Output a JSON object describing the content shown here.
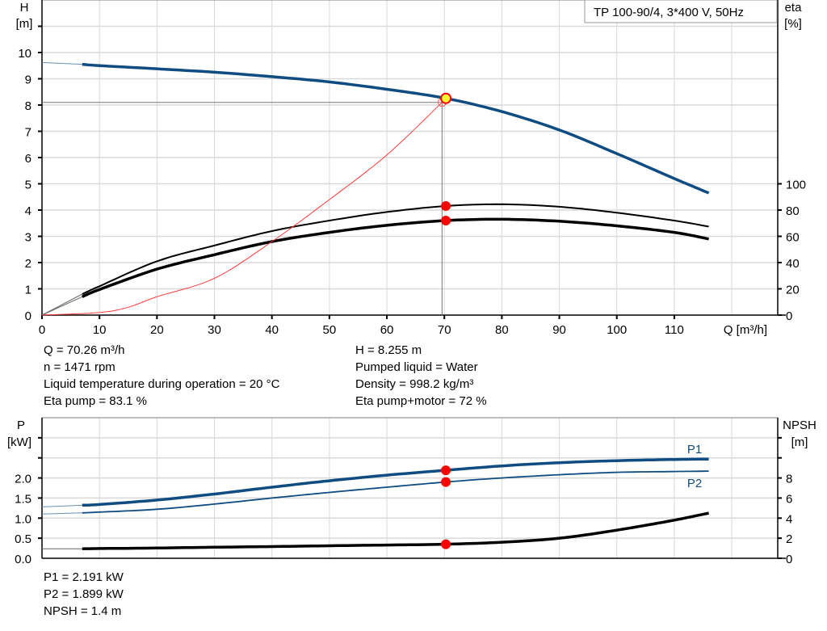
{
  "chart_data": [
    {
      "type": "line",
      "title": "TP 100-90/4, 3*400 V, 50Hz",
      "xlabel": "Q [m³/h]",
      "ylabel": "H\n[m]",
      "ylabel_parts": [
        "H",
        "[m]"
      ],
      "y2label_parts": [
        "eta",
        "[%]"
      ],
      "xlim": [
        0,
        128
      ],
      "ylim": [
        0,
        12
      ],
      "y2lim": [
        0,
        240
      ],
      "xticks": [
        0,
        10,
        20,
        30,
        40,
        50,
        60,
        70,
        80,
        90,
        100,
        110
      ],
      "yticks": [
        0,
        1,
        2,
        3,
        4,
        5,
        6,
        7,
        8,
        9,
        10
      ],
      "y2ticks": [
        0,
        20,
        40,
        60,
        80,
        100
      ],
      "grid": true,
      "series": [
        {
          "key": "H",
          "axis": "left",
          "color": "#0f4c81",
          "x": [
            7,
            10,
            20,
            30,
            40,
            50,
            60,
            70.26,
            80,
            90,
            100,
            110,
            116
          ],
          "y": [
            9.55,
            9.5,
            9.38,
            9.25,
            9.08,
            8.88,
            8.6,
            8.255,
            7.75,
            7.05,
            6.15,
            5.2,
            4.65
          ],
          "extrapolated": {
            "x": [
              0,
              7
            ],
            "y": [
              9.62,
              9.55
            ]
          }
        },
        {
          "key": "eta_pump",
          "axis": "right",
          "color": "#000000",
          "x": [
            7,
            10,
            20,
            30,
            40,
            50,
            60,
            70.26,
            80,
            90,
            100,
            110,
            116
          ],
          "y": [
            16,
            22,
            41,
            53,
            64,
            72,
            78.5,
            83.1,
            84.4,
            82.5,
            78,
            72,
            67.4
          ],
          "extrapolated": {
            "x": [
              0,
              7
            ],
            "y": [
              0,
              16
            ]
          }
        },
        {
          "key": "eta_pump_motor",
          "axis": "right",
          "color": "#000000",
          "x": [
            7,
            10,
            20,
            30,
            40,
            50,
            60,
            70.26,
            80,
            90,
            100,
            110,
            116
          ],
          "y": [
            14,
            19.5,
            35,
            46,
            56,
            63,
            68.4,
            72,
            73,
            71.5,
            68,
            63,
            58
          ],
          "extrapolated": {
            "x": [
              0,
              7
            ],
            "y": [
              0,
              14
            ]
          }
        },
        {
          "key": "system_curve",
          "axis": "left",
          "color": "#ff3b3b",
          "x": [
            0,
            10,
            15,
            20,
            30,
            40,
            50,
            60,
            69.6
          ],
          "y": [
            0,
            0.1,
            0.3,
            0.7,
            1.4,
            2.8,
            4.4,
            6.1,
            8.1
          ]
        }
      ],
      "duty_point": {
        "Q": 70.26,
        "H": 8.255,
        "eta_pump": 83.1,
        "eta_pump_motor": 72
      },
      "reference_lines": {
        "H": 8.1,
        "Q": 69.6
      }
    },
    {
      "type": "line",
      "xlim": [
        0,
        128
      ],
      "ylabel_parts": [
        "P",
        "[kW]"
      ],
      "y2label_parts": [
        "NPSH",
        "[m]"
      ],
      "ylim": [
        0,
        3.5
      ],
      "y2lim": [
        0,
        14
      ],
      "yticks": [
        "0.0",
        "0.5",
        "1.0",
        "1.5",
        "2.0"
      ],
      "y2ticks": [
        0,
        2,
        4,
        6,
        8
      ],
      "grid": true,
      "series": [
        {
          "name": "P1",
          "axis": "left",
          "color": "#0f4c81",
          "x": [
            7,
            10,
            20,
            30,
            40,
            50,
            60,
            70.26,
            80,
            90,
            100,
            110,
            116
          ],
          "y": [
            1.32,
            1.34,
            1.45,
            1.6,
            1.77,
            1.93,
            2.07,
            2.191,
            2.3,
            2.38,
            2.43,
            2.46,
            2.47
          ],
          "extrapolated": {
            "x": [
              0,
              7
            ],
            "y": [
              1.28,
              1.32
            ]
          }
        },
        {
          "name": "P2",
          "axis": "left",
          "color": "#0f4c81",
          "x": [
            7,
            10,
            20,
            30,
            40,
            50,
            60,
            70.26,
            80,
            90,
            100,
            110,
            116
          ],
          "y": [
            1.13,
            1.15,
            1.22,
            1.35,
            1.5,
            1.64,
            1.77,
            1.899,
            2.0,
            2.08,
            2.14,
            2.16,
            2.17
          ],
          "extrapolated": {
            "x": [
              0,
              7
            ],
            "y": [
              1.1,
              1.13
            ]
          }
        },
        {
          "key": "NPSH",
          "axis": "right",
          "color": "#000000",
          "x": [
            7,
            10,
            20,
            30,
            40,
            50,
            60,
            70.26,
            80,
            90,
            100,
            110,
            116
          ],
          "y": [
            0.95,
            0.97,
            1.02,
            1.1,
            1.17,
            1.25,
            1.32,
            1.4,
            1.6,
            2.0,
            2.8,
            3.8,
            4.5
          ],
          "extrapolated": {
            "x": [
              0,
              7
            ],
            "y": [
              0.95,
              0.95
            ]
          }
        }
      ],
      "duty_point": {
        "Q": 70.26,
        "P1": 2.191,
        "P2": 1.899,
        "NPSH": 1.4
      }
    }
  ],
  "info_top_left": [
    "Q = 70.26 m³/h",
    "n = 1471 rpm",
    "Liquid temperature during operation = 20 °C",
    "Eta pump = 83.1 %"
  ],
  "info_top_right": [
    "H = 8.255 m",
    "Pumped liquid = Water",
    "Density = 998.2 kg/m³",
    "Eta pump+motor = 72 %"
  ],
  "info_bottom": [
    "P1 = 2.191 kW",
    "P2 = 1.899 kW",
    "NPSH = 1.4 m"
  ]
}
